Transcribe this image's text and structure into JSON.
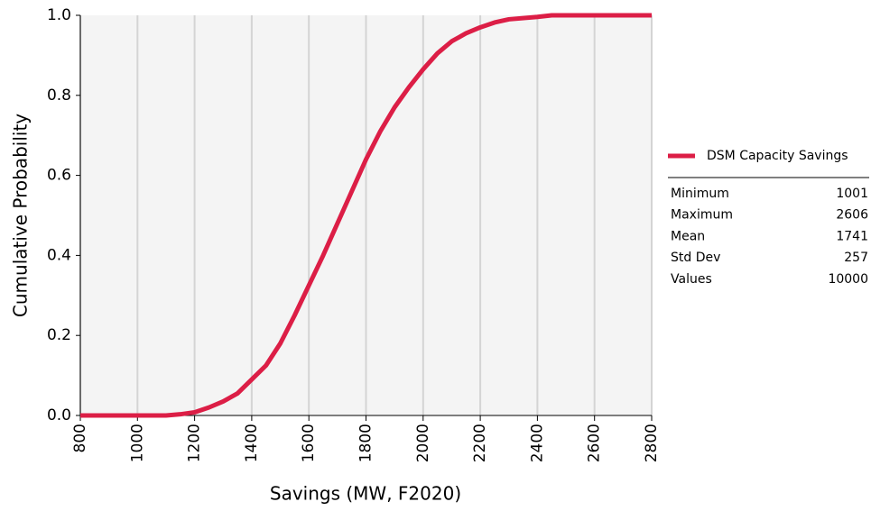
{
  "chart_data": {
    "type": "line",
    "xlabel": "Savings (MW, F2020)",
    "ylabel": "Cumulative Probability",
    "x": [
      800,
      1100,
      1150,
      1200,
      1250,
      1300,
      1350,
      1400,
      1450,
      1500,
      1550,
      1600,
      1650,
      1700,
      1750,
      1800,
      1850,
      1900,
      1950,
      2000,
      2050,
      2100,
      2150,
      2200,
      2250,
      2300,
      2400,
      2450,
      2800
    ],
    "series": [
      {
        "name": "DSM Capacity Savings",
        "color": "#dc1e46",
        "values": [
          0,
          0,
          0.003,
          0.008,
          0.02,
          0.035,
          0.055,
          0.09,
          0.125,
          0.18,
          0.25,
          0.325,
          0.4,
          0.48,
          0.56,
          0.64,
          0.71,
          0.77,
          0.82,
          0.865,
          0.905,
          0.935,
          0.955,
          0.97,
          0.982,
          0.99,
          0.996,
          1,
          1
        ]
      }
    ],
    "xlim": [
      800,
      2800
    ],
    "xticks": [
      800,
      1000,
      1200,
      1400,
      1600,
      1800,
      2000,
      2200,
      2400,
      2600,
      2800
    ],
    "ylim": [
      0,
      1
    ],
    "yticks": [
      {
        "value": 0,
        "label": "0.0"
      },
      0.2,
      0.4,
      0.6,
      0.8,
      {
        "value": 1,
        "label": "1.0"
      }
    ],
    "grid": true,
    "legend": "right",
    "stats": [
      {
        "label": "Minimum",
        "value": 1001
      },
      {
        "label": "Maximum",
        "value": 2606
      },
      {
        "label": "Mean",
        "value": 1741
      },
      {
        "label": "Std Dev",
        "value": 257
      },
      {
        "label": "Values",
        "value": 10000
      }
    ]
  }
}
